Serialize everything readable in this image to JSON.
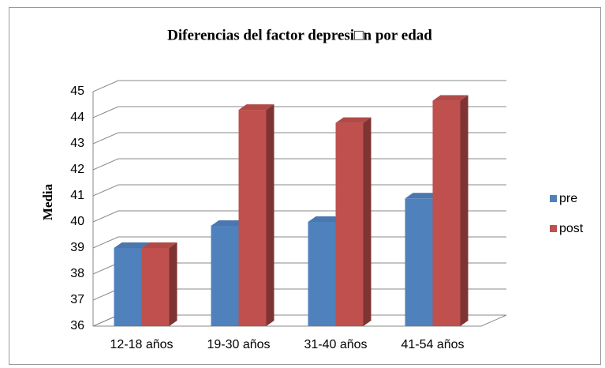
{
  "chart_data": {
    "type": "bar3d",
    "title": "Diferencias del factor depresi□n por edad",
    "y_label": "Media",
    "categories": [
      "12-18 años",
      "19-30 años",
      "31-40 años",
      "41-54 años"
    ],
    "series": [
      {
        "name": "pre",
        "color": "#4f81bd",
        "values": [
          39,
          39.85,
          40,
          40.9
        ]
      },
      {
        "name": "post",
        "color": "#c0504d",
        "values": [
          39,
          44.3,
          43.8,
          44.65
        ]
      }
    ],
    "ylim": [
      36,
      45
    ],
    "yticks": [
      36,
      37,
      38,
      39,
      40,
      41,
      42,
      43,
      44,
      45
    ],
    "grid": true,
    "legend": "right"
  }
}
